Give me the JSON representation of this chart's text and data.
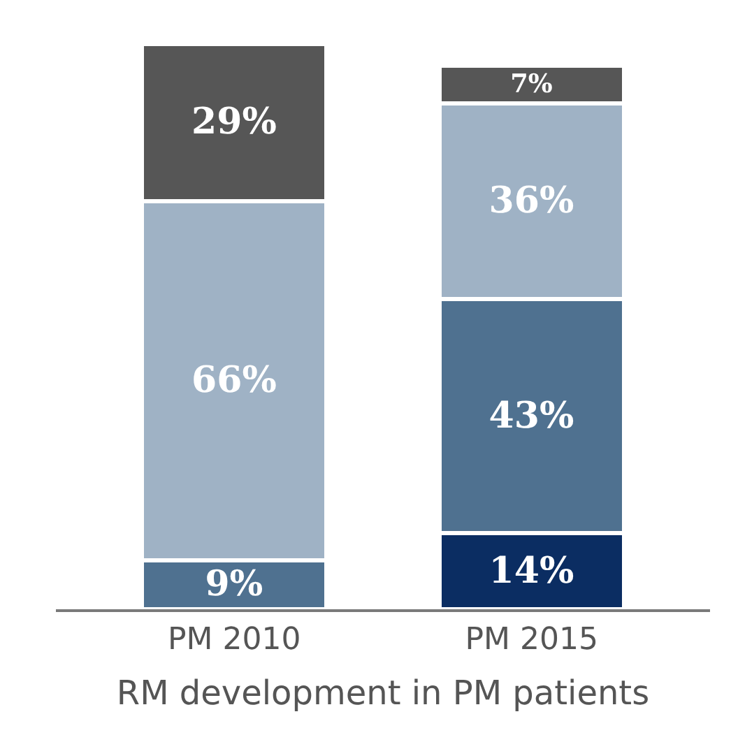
{
  "chart_data": {
    "type": "bar",
    "stacked": true,
    "xlabel": "RM development in PM patients",
    "categories": [
      "PM 2010",
      "PM 2015"
    ],
    "series": [
      {
        "color": "#0b2d62",
        "values": [
          null,
          14
        ],
        "value_labels": [
          null,
          "14%"
        ]
      },
      {
        "color": "#4f7190",
        "values": [
          9,
          43
        ],
        "value_labels": [
          "9%",
          "43%"
        ]
      },
      {
        "color": "#9fb2c5",
        "values": [
          66,
          36
        ],
        "value_labels": [
          "66%",
          "36%"
        ]
      },
      {
        "color": "#565656",
        "values": [
          29,
          7
        ],
        "value_labels": [
          "29%",
          "7%"
        ]
      }
    ]
  }
}
